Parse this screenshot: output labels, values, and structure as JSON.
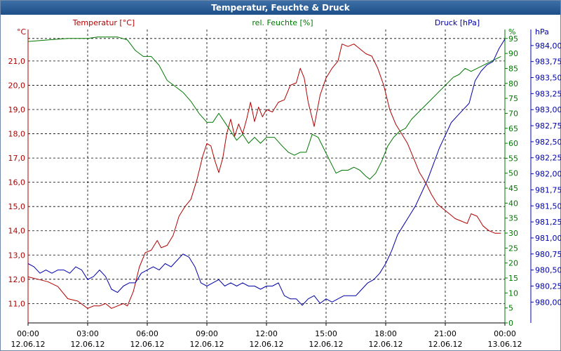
{
  "window": {
    "title": "Temperatur, Feuchte & Druck"
  },
  "colors": {
    "temperature": "#b00000",
    "humidity": "#007700",
    "pressure": "#0000aa",
    "grid": "#000000"
  },
  "chart_data": {
    "type": "line",
    "title": "Temperatur, Feuchte & Druck",
    "grid": true,
    "x_ticks": [
      {
        "time": "00:00",
        "date": "12.06.12"
      },
      {
        "time": "03:00",
        "date": "12.06.12"
      },
      {
        "time": "06:00",
        "date": "12.06.12"
      },
      {
        "time": "09:00",
        "date": "12.06.12"
      },
      {
        "time": "12:00",
        "date": "12.06.12"
      },
      {
        "time": "15:00",
        "date": "12.06.12"
      },
      {
        "time": "18:00",
        "date": "12.06.12"
      },
      {
        "time": "21:00",
        "date": "12.06.12"
      },
      {
        "time": "00:00",
        "date": "13.06.12"
      }
    ],
    "xrange_hours": [
      0,
      24
    ],
    "axes": {
      "temperature": {
        "unit": "°C",
        "label": "Temperatur [°C]",
        "range": [
          10.2,
          22.3
        ],
        "ticks": [
          "11,0",
          "12,0",
          "13,0",
          "14,0",
          "15,0",
          "16,0",
          "17,0",
          "18,0",
          "19,0",
          "20,0",
          "21,0"
        ]
      },
      "humidity": {
        "unit": "%",
        "label": "rel. Feuchte [%]",
        "range": [
          0,
          98
        ],
        "ticks": [
          "0",
          "5",
          "10",
          "15",
          "20",
          "25",
          "30",
          "35",
          "40",
          "45",
          "50",
          "55",
          "60",
          "65",
          "70",
          "75",
          "80",
          "85",
          "90",
          "95"
        ]
      },
      "pressure": {
        "unit": "hPa",
        "label": "Druck [hPa]",
        "range": [
          979.675,
          984.25
        ],
        "ticks": [
          "980,00",
          "980,25",
          "980,50",
          "980,75",
          "981,00",
          "981,25",
          "981,50",
          "981,75",
          "982,00",
          "982,25",
          "982,50",
          "982,75",
          "983,00",
          "983,25",
          "983,50",
          "983,75",
          "984,00"
        ]
      }
    },
    "series": [
      {
        "name": "Temperatur [°C]",
        "axis": "temperature",
        "points": [
          [
            0,
            12.1
          ],
          [
            0.5,
            12.0
          ],
          [
            1,
            11.9
          ],
          [
            1.5,
            11.7
          ],
          [
            2,
            11.2
          ],
          [
            2.5,
            11.1
          ],
          [
            3,
            10.8
          ],
          [
            3.3,
            10.9
          ],
          [
            3.6,
            10.9
          ],
          [
            3.9,
            11.0
          ],
          [
            4.2,
            10.8
          ],
          [
            4.5,
            10.9
          ],
          [
            4.8,
            11.0
          ],
          [
            5.0,
            10.9
          ],
          [
            5.3,
            11.5
          ],
          [
            5.6,
            12.5
          ],
          [
            5.9,
            13.1
          ],
          [
            6.2,
            13.2
          ],
          [
            6.5,
            13.6
          ],
          [
            6.7,
            13.3
          ],
          [
            7.0,
            13.4
          ],
          [
            7.3,
            13.8
          ],
          [
            7.6,
            14.6
          ],
          [
            7.9,
            15.0
          ],
          [
            8.2,
            15.3
          ],
          [
            8.5,
            16.1
          ],
          [
            8.8,
            17.1
          ],
          [
            9.0,
            17.6
          ],
          [
            9.2,
            17.5
          ],
          [
            9.4,
            16.9
          ],
          [
            9.6,
            16.4
          ],
          [
            9.8,
            17.0
          ],
          [
            10.0,
            18.0
          ],
          [
            10.2,
            18.6
          ],
          [
            10.4,
            17.9
          ],
          [
            10.6,
            18.4
          ],
          [
            10.8,
            18.0
          ],
          [
            11.0,
            18.6
          ],
          [
            11.2,
            19.3
          ],
          [
            11.4,
            18.5
          ],
          [
            11.6,
            19.1
          ],
          [
            11.8,
            18.7
          ],
          [
            12.0,
            19.0
          ],
          [
            12.3,
            18.9
          ],
          [
            12.6,
            19.3
          ],
          [
            12.9,
            19.4
          ],
          [
            13.2,
            20.0
          ],
          [
            13.5,
            20.1
          ],
          [
            13.7,
            20.7
          ],
          [
            13.9,
            20.3
          ],
          [
            14.1,
            19.3
          ],
          [
            14.4,
            18.3
          ],
          [
            14.7,
            19.6
          ],
          [
            15.0,
            20.3
          ],
          [
            15.3,
            20.7
          ],
          [
            15.6,
            21.0
          ],
          [
            15.8,
            21.7
          ],
          [
            16.1,
            21.6
          ],
          [
            16.4,
            21.7
          ],
          [
            16.7,
            21.5
          ],
          [
            17.0,
            21.3
          ],
          [
            17.3,
            21.2
          ],
          [
            17.6,
            20.7
          ],
          [
            17.9,
            20.0
          ],
          [
            18.2,
            19.0
          ],
          [
            18.5,
            18.4
          ],
          [
            18.8,
            18.0
          ],
          [
            19.1,
            17.6
          ],
          [
            19.4,
            17.0
          ],
          [
            19.7,
            16.4
          ],
          [
            20.0,
            16.0
          ],
          [
            20.3,
            15.5
          ],
          [
            20.6,
            15.1
          ],
          [
            20.9,
            14.9
          ],
          [
            21.2,
            14.7
          ],
          [
            21.5,
            14.5
          ],
          [
            21.8,
            14.4
          ],
          [
            22.1,
            14.3
          ],
          [
            22.3,
            14.7
          ],
          [
            22.6,
            14.6
          ],
          [
            22.9,
            14.2
          ],
          [
            23.2,
            14.0
          ],
          [
            23.5,
            13.9
          ],
          [
            23.8,
            13.9
          ]
        ]
      },
      {
        "name": "rel. Feuchte [%]",
        "axis": "humidity",
        "points": [
          [
            0,
            94
          ],
          [
            1,
            94.5
          ],
          [
            2,
            95
          ],
          [
            3,
            95
          ],
          [
            3.5,
            95.5
          ],
          [
            4,
            95.5
          ],
          [
            4.5,
            95.5
          ],
          [
            5,
            94.5
          ],
          [
            5.4,
            91
          ],
          [
            5.8,
            89
          ],
          [
            6.2,
            89
          ],
          [
            6.6,
            86
          ],
          [
            7.0,
            81
          ],
          [
            7.4,
            79
          ],
          [
            7.8,
            77
          ],
          [
            8.2,
            74
          ],
          [
            8.6,
            70
          ],
          [
            9.0,
            67
          ],
          [
            9.3,
            67
          ],
          [
            9.6,
            70
          ],
          [
            9.9,
            67
          ],
          [
            10.2,
            64
          ],
          [
            10.5,
            61
          ],
          [
            10.8,
            63
          ],
          [
            11.1,
            60
          ],
          [
            11.4,
            62
          ],
          [
            11.7,
            60
          ],
          [
            12.0,
            62
          ],
          [
            12.4,
            62
          ],
          [
            12.8,
            59
          ],
          [
            13.1,
            57
          ],
          [
            13.4,
            56
          ],
          [
            13.7,
            57
          ],
          [
            14.0,
            57
          ],
          [
            14.3,
            63
          ],
          [
            14.6,
            62
          ],
          [
            14.9,
            58
          ],
          [
            15.2,
            54
          ],
          [
            15.5,
            50
          ],
          [
            15.8,
            51
          ],
          [
            16.1,
            51
          ],
          [
            16.4,
            52
          ],
          [
            16.7,
            51
          ],
          [
            17.0,
            49
          ],
          [
            17.2,
            48
          ],
          [
            17.5,
            50
          ],
          [
            17.8,
            54
          ],
          [
            18.1,
            59
          ],
          [
            18.4,
            62
          ],
          [
            18.7,
            64
          ],
          [
            19.0,
            65
          ],
          [
            19.3,
            68
          ],
          [
            19.6,
            70
          ],
          [
            19.9,
            72
          ],
          [
            20.2,
            74
          ],
          [
            20.5,
            76
          ],
          [
            20.8,
            78
          ],
          [
            21.1,
            80
          ],
          [
            21.4,
            82
          ],
          [
            21.7,
            83
          ],
          [
            22.0,
            85
          ],
          [
            22.3,
            84
          ],
          [
            22.6,
            85
          ],
          [
            22.9,
            86
          ],
          [
            23.2,
            87
          ],
          [
            23.5,
            88
          ],
          [
            23.8,
            89
          ]
        ]
      },
      {
        "name": "Druck [hPa]",
        "axis": "pressure",
        "points": [
          [
            0,
            980.6
          ],
          [
            0.3,
            980.55
          ],
          [
            0.6,
            980.45
          ],
          [
            0.9,
            980.5
          ],
          [
            1.2,
            980.45
          ],
          [
            1.5,
            980.5
          ],
          [
            1.8,
            980.5
          ],
          [
            2.1,
            980.45
          ],
          [
            2.4,
            980.55
          ],
          [
            2.7,
            980.5
          ],
          [
            3.0,
            980.35
          ],
          [
            3.3,
            980.4
          ],
          [
            3.6,
            980.5
          ],
          [
            3.9,
            980.4
          ],
          [
            4.2,
            980.2
          ],
          [
            4.5,
            980.15
          ],
          [
            4.8,
            980.25
          ],
          [
            5.1,
            980.3
          ],
          [
            5.4,
            980.3
          ],
          [
            5.7,
            980.45
          ],
          [
            6.0,
            980.5
          ],
          [
            6.3,
            980.55
          ],
          [
            6.6,
            980.5
          ],
          [
            6.9,
            980.6
          ],
          [
            7.2,
            980.55
          ],
          [
            7.5,
            980.65
          ],
          [
            7.8,
            980.75
          ],
          [
            8.1,
            980.7
          ],
          [
            8.4,
            980.55
          ],
          [
            8.7,
            980.3
          ],
          [
            9.0,
            980.25
          ],
          [
            9.3,
            980.3
          ],
          [
            9.6,
            980.35
          ],
          [
            9.9,
            980.25
          ],
          [
            10.2,
            980.3
          ],
          [
            10.5,
            980.25
          ],
          [
            10.8,
            980.3
          ],
          [
            11.1,
            980.25
          ],
          [
            11.4,
            980.25
          ],
          [
            11.7,
            980.2
          ],
          [
            12.0,
            980.25
          ],
          [
            12.3,
            980.25
          ],
          [
            12.6,
            980.3
          ],
          [
            12.9,
            980.1
          ],
          [
            13.2,
            980.05
          ],
          [
            13.5,
            980.05
          ],
          [
            13.8,
            979.95
          ],
          [
            14.1,
            980.05
          ],
          [
            14.4,
            980.1
          ],
          [
            14.7,
            979.98
          ],
          [
            15.0,
            980.05
          ],
          [
            15.3,
            980.0
          ],
          [
            15.6,
            980.05
          ],
          [
            15.9,
            980.1
          ],
          [
            16.2,
            980.1
          ],
          [
            16.5,
            980.1
          ],
          [
            16.8,
            980.2
          ],
          [
            17.1,
            980.3
          ],
          [
            17.4,
            980.35
          ],
          [
            17.7,
            980.45
          ],
          [
            18.0,
            980.6
          ],
          [
            18.3,
            980.8
          ],
          [
            18.6,
            981.05
          ],
          [
            18.9,
            981.2
          ],
          [
            19.2,
            981.35
          ],
          [
            19.5,
            981.5
          ],
          [
            19.8,
            981.7
          ],
          [
            20.1,
            981.9
          ],
          [
            20.4,
            982.15
          ],
          [
            20.7,
            982.4
          ],
          [
            21.0,
            982.6
          ],
          [
            21.3,
            982.8
          ],
          [
            21.6,
            982.9
          ],
          [
            21.9,
            983.0
          ],
          [
            22.2,
            983.1
          ],
          [
            22.5,
            983.45
          ],
          [
            22.8,
            983.6
          ],
          [
            23.1,
            983.7
          ],
          [
            23.4,
            983.75
          ],
          [
            23.7,
            983.95
          ],
          [
            24.0,
            984.1
          ]
        ]
      }
    ]
  }
}
